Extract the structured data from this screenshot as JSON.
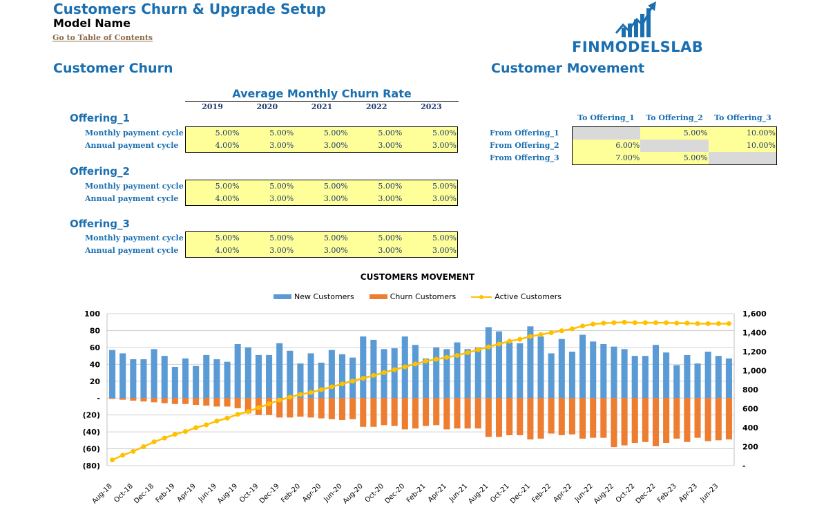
{
  "header": {
    "title": "Customers Churn & Upgrade Setup",
    "model_name": "Model Name",
    "toc_link": "Go to Table of Contents",
    "logo_text": "FINMODELSLAB"
  },
  "churn": {
    "section_title": "Customer Churn",
    "table_title": "Average Monthly Churn Rate",
    "years": [
      "2019",
      "2020",
      "2021",
      "2022",
      "2023"
    ],
    "offerings": [
      {
        "name": "Offering_1",
        "rows": [
          {
            "label": "Monthly payment cycle",
            "values": [
              "5.00%",
              "5.00%",
              "5.00%",
              "5.00%",
              "5.00%"
            ]
          },
          {
            "label": "Annual payment cycle",
            "values": [
              "4.00%",
              "3.00%",
              "3.00%",
              "3.00%",
              "3.00%"
            ]
          }
        ]
      },
      {
        "name": "Offering_2",
        "rows": [
          {
            "label": "Monthly payment cycle",
            "values": [
              "5.00%",
              "5.00%",
              "5.00%",
              "5.00%",
              "5.00%"
            ]
          },
          {
            "label": "Annual payment cycle",
            "values": [
              "4.00%",
              "3.00%",
              "3.00%",
              "3.00%",
              "3.00%"
            ]
          }
        ]
      },
      {
        "name": "Offering_3",
        "rows": [
          {
            "label": "Monthly payment cycle",
            "values": [
              "5.00%",
              "5.00%",
              "5.00%",
              "5.00%",
              "5.00%"
            ]
          },
          {
            "label": "Annual payment cycle",
            "values": [
              "4.00%",
              "3.00%",
              "3.00%",
              "3.00%",
              "3.00%"
            ]
          }
        ]
      }
    ]
  },
  "movement": {
    "section_title": "Customer Movement",
    "columns": [
      "To Offering_1",
      "To Offering_2",
      "To Offering_3"
    ],
    "rows": [
      {
        "label": "From Offering_1",
        "values": [
          "",
          "5.00%",
          "10.00%"
        ]
      },
      {
        "label": "From Offering_2",
        "values": [
          "6.00%",
          "",
          "10.00%"
        ]
      },
      {
        "label": "From Offering_3",
        "values": [
          "7.00%",
          "5.00%",
          ""
        ]
      }
    ]
  },
  "chart_data": {
    "type": "bar",
    "title": "CUSTOMERS MOVEMENT",
    "legend_position": "top",
    "categories": [
      "Aug-18",
      "Sep-18",
      "Oct-18",
      "Nov-18",
      "Dec-18",
      "Jan-19",
      "Feb-19",
      "Mar-19",
      "Apr-19",
      "May-19",
      "Jun-19",
      "Jul-19",
      "Aug-19",
      "Sep-19",
      "Oct-19",
      "Nov-19",
      "Dec-19",
      "Jan-20",
      "Feb-20",
      "Mar-20",
      "Apr-20",
      "May-20",
      "Jun-20",
      "Jul-20",
      "Aug-20",
      "Sep-20",
      "Oct-20",
      "Nov-20",
      "Dec-20",
      "Jan-21",
      "Feb-21",
      "Mar-21",
      "Apr-21",
      "May-21",
      "Jun-21",
      "Jul-21",
      "Aug-21",
      "Sep-21",
      "Oct-21",
      "Nov-21",
      "Dec-21",
      "Jan-22",
      "Feb-22",
      "Mar-22",
      "Apr-22",
      "May-22",
      "Jun-22",
      "Jul-22",
      "Aug-22",
      "Sep-22",
      "Oct-22",
      "Nov-22",
      "Dec-22",
      "Jan-23",
      "Feb-23",
      "Mar-23",
      "Apr-23",
      "May-23",
      "Jun-23",
      "Jul-23"
    ],
    "x_tick_labels": [
      "Aug-18",
      "Oct-18",
      "Dec-18",
      "Feb-19",
      "Apr-19",
      "Jun-19",
      "Aug-19",
      "Oct-19",
      "Dec-19",
      "Feb-20",
      "Apr-20",
      "Jun-20",
      "Aug-20",
      "Oct-20",
      "Dec-20",
      "Feb-21",
      "Apr-21",
      "Jun-21",
      "Aug-21",
      "Oct-21",
      "Dec-21",
      "Feb-22",
      "Apr-22",
      "Jun-22",
      "Aug-22",
      "Oct-22",
      "Dec-22",
      "Feb-23",
      "Apr-23",
      "Jun-23"
    ],
    "y_left": {
      "min": -80,
      "max": 100,
      "ticks": [
        100,
        80,
        60,
        40,
        20,
        0,
        -20,
        -40,
        -60,
        -80
      ],
      "tick_labels": [
        "100",
        "80",
        "60",
        "40",
        "20",
        "-",
        "(20)",
        "(40)",
        "(60)",
        "(80)"
      ]
    },
    "y_right": {
      "min": 0,
      "max": 1600,
      "ticks": [
        1600,
        1400,
        1200,
        1000,
        800,
        600,
        400,
        200,
        0
      ],
      "tick_labels": [
        "1,600",
        "1,400",
        "1,200",
        "1,000",
        "800",
        "600",
        "400",
        "200",
        "-"
      ]
    },
    "grid": true,
    "series": [
      {
        "name": "New Customers",
        "color": "#5b9bd5",
        "axis": "left",
        "type": "bar",
        "values": [
          57,
          53,
          46,
          46,
          58,
          50,
          37,
          47,
          38,
          51,
          46,
          43,
          64,
          60,
          51,
          51,
          65,
          56,
          41,
          53,
          42,
          57,
          52,
          48,
          73,
          69,
          58,
          59,
          73,
          63,
          47,
          60,
          58,
          66,
          58,
          60,
          84,
          79,
          66,
          65,
          85,
          73,
          53,
          70,
          55,
          75,
          67,
          64,
          61,
          58,
          50,
          50,
          63,
          54,
          39,
          51,
          41,
          55,
          50,
          47
        ]
      },
      {
        "name": "Churn Customers",
        "color": "#ed7d31",
        "axis": "left",
        "type": "bar",
        "values": [
          -1,
          -2,
          -3,
          -4,
          -5,
          -6,
          -7,
          -7,
          -8,
          -9,
          -10,
          -10,
          -12,
          -18,
          -20,
          -20,
          -23,
          -23,
          -22,
          -23,
          -24,
          -25,
          -26,
          -25,
          -34,
          -34,
          -32,
          -33,
          -37,
          -36,
          -33,
          -32,
          -37,
          -36,
          -36,
          -36,
          -46,
          -46,
          -44,
          -44,
          -49,
          -48,
          -42,
          -44,
          -43,
          -48,
          -47,
          -47,
          -58,
          -56,
          -53,
          -52,
          -57,
          -53,
          -48,
          -52,
          -47,
          -51,
          -50,
          -49
        ]
      },
      {
        "name": "Active Customers",
        "color": "#ffc000",
        "axis": "right",
        "type": "line",
        "values": [
          60,
          110,
          150,
          200,
          250,
          290,
          330,
          360,
          400,
          430,
          470,
          500,
          540,
          570,
          610,
          650,
          690,
          720,
          750,
          770,
          800,
          830,
          860,
          890,
          920,
          950,
          980,
          1010,
          1040,
          1070,
          1100,
          1120,
          1140,
          1160,
          1190,
          1220,
          1250,
          1280,
          1310,
          1330,
          1360,
          1380,
          1400,
          1420,
          1440,
          1470,
          1490,
          1500,
          1505,
          1510,
          1505,
          1505,
          1505,
          1505,
          1500,
          1500,
          1495,
          1495,
          1495,
          1495
        ]
      }
    ]
  }
}
